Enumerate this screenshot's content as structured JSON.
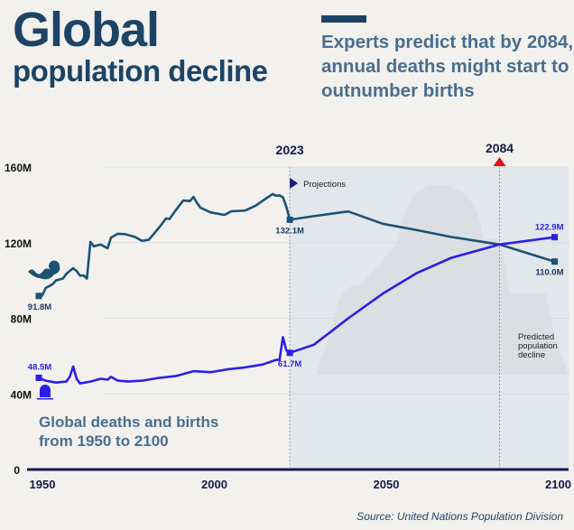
{
  "header": {
    "title_line1": "Global",
    "title_line2": "population decline",
    "subtitle": "Experts predict that by 2084, annual deaths might start to outnumber births"
  },
  "source": "Source: United Nations Population Division",
  "colors": {
    "births": "#1d5273",
    "deaths": "#2a1fe6",
    "projection_shade": "#e2e7ec",
    "marker_2084": "#d4161b",
    "background": "#f2f1ee"
  },
  "icons": {
    "births_start": "baby-icon",
    "deaths_start": "gravestone-icon",
    "projection": "triangle-right-icon",
    "marker_2084": "triangle-up-icon"
  },
  "chart_data": {
    "type": "line",
    "chart_label": "Global deaths and births from 1950 to 2100",
    "xlim": [
      1950,
      2100
    ],
    "ylim": [
      0,
      160
    ],
    "x_ticks": [
      "1950",
      "2000",
      "2050",
      "2100"
    ],
    "y_ticks": [
      {
        "v": 0,
        "label": "0"
      },
      {
        "v": 40,
        "label": "40M"
      },
      {
        "v": 80,
        "label": "80M"
      },
      {
        "v": 120,
        "label": "120M"
      },
      {
        "v": 160,
        "label": "160M"
      }
    ],
    "grid": true,
    "projection_start": 2023,
    "projection_label": "Projections",
    "crossover_year": 2084,
    "crossover_label": "2084",
    "start_label": "2023",
    "crossover_note": "Predicted population decline",
    "series": [
      {
        "key": "births",
        "x": [
          1950,
          1951,
          1952,
          1954,
          1955,
          1957,
          1958,
          1960,
          1961,
          1962,
          1963,
          1964,
          1965,
          1966,
          1968,
          1970,
          1971,
          1973,
          1975,
          1978,
          1980,
          1982,
          1985,
          1987,
          1988,
          1990,
          1992,
          1994,
          1995,
          1996,
          1997,
          2000,
          2004,
          2006,
          2010,
          2013,
          2016,
          2018,
          2019,
          2020,
          2021,
          2022,
          2023,
          2030,
          2040,
          2050,
          2060,
          2070,
          2084,
          2100
        ],
        "y": [
          91.8,
          92,
          96,
          98,
          100,
          101,
          103.5,
          106.5,
          105,
          102.5,
          102.7,
          101,
          120.4,
          118,
          119,
          117,
          122.7,
          124.7,
          124.5,
          123,
          121,
          121.5,
          128,
          132.8,
          132.5,
          137.6,
          142.3,
          142,
          144.2,
          141,
          138.5,
          136,
          134.7,
          136.6,
          137,
          139.5,
          143.3,
          145.7,
          144.8,
          145,
          144,
          139,
          132.1,
          134,
          136.5,
          130,
          126.6,
          123,
          119,
          110
        ],
        "labels": [
          {
            "x": 1950,
            "text": "91.8M"
          },
          {
            "x": 2023,
            "text": "132.1M"
          },
          {
            "x": 2100,
            "text": "110.0M"
          }
        ]
      },
      {
        "key": "deaths",
        "x": [
          1950,
          1952,
          1955,
          1958,
          1959,
          1960,
          1961,
          1962,
          1965,
          1968,
          1970,
          1971,
          1973,
          1976,
          1980,
          1985,
          1990,
          1995,
          2000,
          2005,
          2010,
          2015,
          2019,
          2020,
          2021,
          2022,
          2023,
          2030,
          2040,
          2050,
          2060,
          2070,
          2084,
          2100
        ],
        "y": [
          48.5,
          47,
          46,
          46.5,
          49,
          54.5,
          48,
          45.5,
          46.5,
          48,
          47.5,
          49,
          47,
          46.5,
          47,
          48.5,
          49.5,
          52,
          51.5,
          53,
          54,
          55.5,
          58,
          58,
          70,
          63,
          61.7,
          66,
          80,
          93,
          104,
          112,
          119,
          122.9
        ],
        "labels": [
          {
            "x": 1950,
            "text": "48.5M"
          },
          {
            "x": 2023,
            "text": "61.7M"
          },
          {
            "x": 2100,
            "text": "122.9M"
          }
        ]
      }
    ]
  }
}
